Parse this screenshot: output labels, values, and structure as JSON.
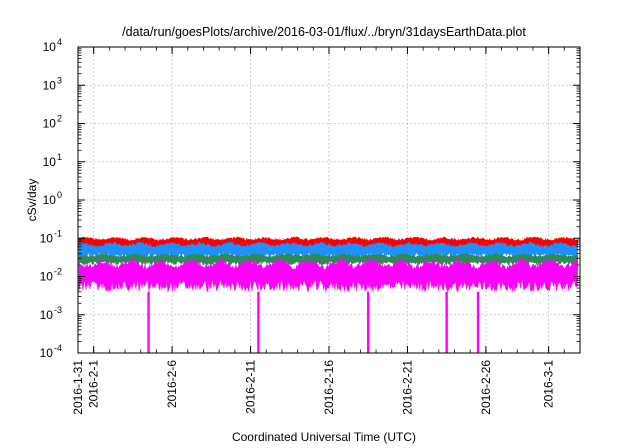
{
  "chart_data": {
    "type": "area",
    "title": "/data/run/goesPlots/archive/2016-03-01/flux/../bryn/31daysEarthData.plot",
    "xlabel": "Coordinated Universal Time (UTC)",
    "ylabel": "cSv/day",
    "y_scale": "log",
    "ylim": [
      0.0001,
      10000
    ],
    "xlim": [
      "2016-01-31",
      "2016-03-03"
    ],
    "grid": true,
    "legend": "none",
    "y_ticks": [
      {
        "value": 0.0001,
        "base": "10",
        "exp": "-4"
      },
      {
        "value": 0.001,
        "base": "10",
        "exp": "-3"
      },
      {
        "value": 0.01,
        "base": "10",
        "exp": "-2"
      },
      {
        "value": 0.1,
        "base": "10",
        "exp": "-1"
      },
      {
        "value": 1,
        "base": "10",
        "exp": "0"
      },
      {
        "value": 10,
        "base": "10",
        "exp": "1"
      },
      {
        "value": 100,
        "base": "10",
        "exp": "2"
      },
      {
        "value": 1000,
        "base": "10",
        "exp": "3"
      },
      {
        "value": 10000,
        "base": "10",
        "exp": "4"
      }
    ],
    "x_ticks": [
      "2016-1-31",
      "2016-2-1",
      "2016-2-6",
      "2016-2-11",
      "2016-2-16",
      "2016-2-21",
      "2016-2-26",
      "2016-3-1"
    ],
    "series": [
      {
        "color": "#ff0000",
        "approx_range": [
          0.05,
          0.11
        ]
      },
      {
        "color": "#1e90ff",
        "approx_range": [
          0.03,
          0.08
        ]
      },
      {
        "color": "#2e8b57",
        "approx_range": [
          0.02,
          0.04
        ]
      },
      {
        "color": "#ff00ff",
        "approx_range": [
          0.004,
          0.03
        ],
        "dropouts": [
          "2016-02-04",
          "2016-02-11",
          "2016-02-18",
          "2016-02-23",
          "2016-02-25"
        ]
      }
    ]
  }
}
